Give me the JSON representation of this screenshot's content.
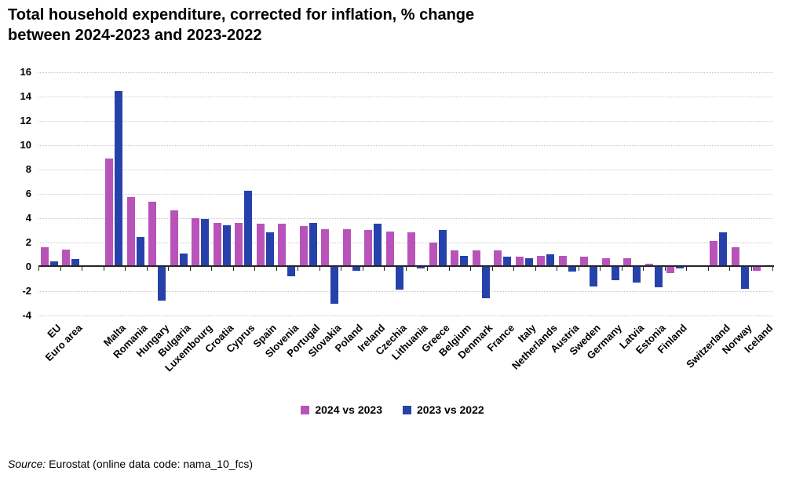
{
  "title": {
    "line1": "Total household expenditure, corrected for inflation, % change",
    "line2": "between 2024-2023 and 2023-2022"
  },
  "legend": {
    "items": [
      {
        "label": "2024 vs 2023",
        "color": "#b854b9"
      },
      {
        "label": "2023 vs 2022",
        "color": "#2642aa"
      }
    ]
  },
  "source": {
    "prefix": "Source:",
    "rest": " Eurostat (online data code: nama_10_fcs)"
  },
  "chart_data": {
    "type": "bar",
    "title": "Total household expenditure, corrected for inflation, % change between 2024-2023 and 2023-2022",
    "xlabel": "",
    "ylabel": "",
    "ylim": [
      -4,
      16
    ],
    "yticks": [
      16,
      14,
      12,
      10,
      8,
      6,
      4,
      2,
      0,
      -2,
      -4
    ],
    "grid": true,
    "legend_position": "bottom",
    "categories": [
      "EU",
      "Euro area",
      "Malta",
      "Romania",
      "Hungary",
      "Bulgaria",
      "Luxembourg",
      "Croatia",
      "Cyprus",
      "Spain",
      "Slovenia",
      "Portugal",
      "Slovakia",
      "Poland",
      "Ireland",
      "Czechia",
      "Lithuania",
      "Greece",
      "Belgium",
      "Denmark",
      "France",
      "Italy",
      "Netherlands",
      "Austria",
      "Sweden",
      "Germany",
      "Latvia",
      "Estonia",
      "Finland",
      "Switzerland",
      "Norway",
      "Iceland"
    ],
    "group_gaps_after": [
      "Euro area",
      "Finland"
    ],
    "series": [
      {
        "name": "2024 vs 2023",
        "color": "#b854b9",
        "values": [
          1.5,
          1.3,
          8.8,
          5.6,
          5.2,
          4.5,
          3.9,
          3.5,
          3.5,
          3.4,
          3.4,
          3.2,
          3.0,
          3.0,
          2.9,
          2.8,
          2.7,
          1.9,
          1.2,
          1.2,
          1.2,
          0.7,
          0.8,
          0.8,
          0.7,
          0.6,
          0.6,
          0.1,
          -0.5,
          2.0,
          1.5,
          -0.3
        ]
      },
      {
        "name": "2023 vs 2022",
        "color": "#2642aa",
        "values": [
          0.3,
          0.5,
          14.3,
          2.3,
          -2.8,
          1.0,
          3.8,
          3.3,
          6.1,
          2.7,
          -0.8,
          3.5,
          -3.0,
          -0.3,
          3.4,
          -1.9,
          -0.1,
          2.9,
          0.8,
          -2.6,
          0.7,
          0.6,
          0.9,
          -0.4,
          -1.6,
          -1.1,
          -1.3,
          -1.7,
          -0.1,
          2.7,
          -1.8,
          0.0
        ]
      }
    ]
  }
}
